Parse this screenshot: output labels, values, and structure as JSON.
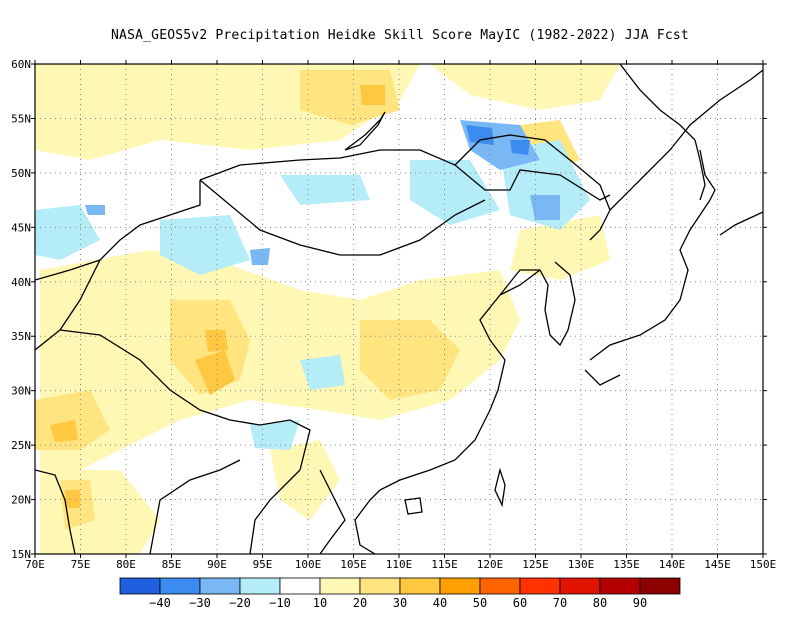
{
  "title": "NASA_GEOS5v2  Precipitation Heidke Skill Score MayIC (1982-2022) JJA Fcst",
  "map": {
    "lon_range": [
      70,
      150
    ],
    "lat_range": [
      15,
      60
    ],
    "lon_ticks": [
      "70E",
      "75E",
      "80E",
      "85E",
      "90E",
      "95E",
      "100E",
      "105E",
      "110E",
      "115E",
      "120E",
      "125E",
      "130E",
      "135E",
      "140E",
      "145E",
      "150E"
    ],
    "lat_ticks": [
      "15N",
      "20N",
      "25N",
      "30N",
      "35N",
      "40N",
      "45N",
      "50N",
      "55N",
      "60N"
    ],
    "grid": "dotted"
  },
  "colorbar": {
    "colors": [
      "#1f5fe0",
      "#3c8cef",
      "#7ab8f5",
      "#b4ecf7",
      "#ffffff",
      "#fff7b4",
      "#ffe480",
      "#ffc840",
      "#ffa000",
      "#ff6400",
      "#ff3200",
      "#e01400",
      "#b40000",
      "#8c0000"
    ],
    "labels": [
      "−40",
      "−30",
      "−20",
      "−10",
      "10",
      "20",
      "30",
      "40",
      "50",
      "60",
      "70",
      "80",
      "90"
    ]
  }
}
